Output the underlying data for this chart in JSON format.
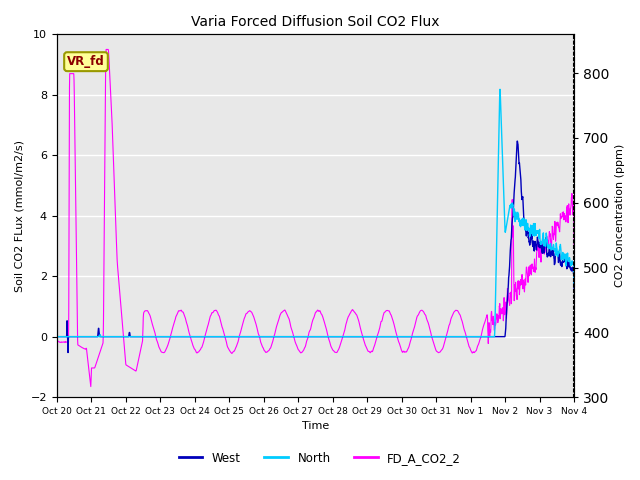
{
  "title": "Varia Forced Diffusion Soil CO2 Flux",
  "xlabel": "Time",
  "ylabel_left": "Soil CO2 FLux (mmol/m2/s)",
  "ylabel_right": "CO2 Concentration (ppm)",
  "ylim_left": [
    -2,
    10
  ],
  "ylim_right": [
    300,
    860
  ],
  "annotation_text": "VR_fd",
  "annotation_color": "#8B0000",
  "annotation_bg": "#FFFF99",
  "annotation_edge": "#999900",
  "bg_color": "#E8E8E8",
  "west_color": "#0000BB",
  "north_color": "#00CCFF",
  "co2_color": "#FF00FF",
  "legend_labels": [
    "West",
    "North",
    "FD_A_CO2_2"
  ],
  "n_days": 15,
  "n_pts_per_day": 144,
  "tick_labels": [
    "Oct 20",
    "Oct 21",
    "Oct 22",
    "Oct 23",
    "Oct 24",
    "Oct 25",
    "Oct 26",
    "Oct 27",
    "Oct 28",
    "Oct 29",
    "Oct 30",
    "Oct 31",
    "Nov 1",
    "Nov 2",
    "Nov 3",
    "Nov 4"
  ]
}
